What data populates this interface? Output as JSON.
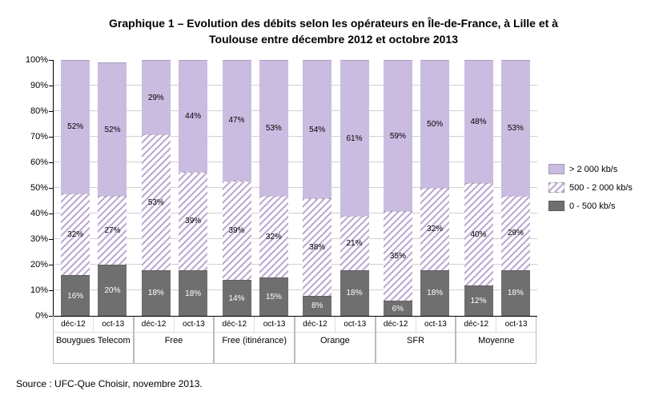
{
  "chart": {
    "type": "stacked-bar-percent",
    "title_line1": "Graphique 1 – Evolution des débits selon les opérateurs en Île-de-France, à Lille et à",
    "title_line2": "Toulouse entre décembre 2012 et octobre 2013",
    "y_axis": {
      "ticks": [
        0,
        10,
        20,
        30,
        40,
        50,
        60,
        70,
        80,
        90,
        100
      ],
      "suffix": "%",
      "min": 0,
      "max": 100
    },
    "legend": {
      "high": "> 2 000 kb/s",
      "mid": "500 - 2 000 kb/s",
      "low": "0 - 500 kb/s"
    },
    "colors": {
      "background": "#ffffff",
      "grid": "#d0d0d0",
      "axis": "#000000",
      "high_fill": "#cabce0",
      "mid_stripe": "#bda9d4",
      "mid_bg": "#ffffff",
      "low_fill": "#6f6f6f",
      "low_text": "#ffffff",
      "text": "#000000"
    },
    "typography": {
      "title_fontsize": 14,
      "title_weight": "bold",
      "tick_fontsize": 11,
      "bar_label_fontsize": 10,
      "source_fontsize": 12,
      "font_family": "Arial"
    },
    "periods": [
      "déc-12",
      "oct-13"
    ],
    "operators": [
      {
        "name": "Bouygues Telecom",
        "bars": [
          {
            "low": 16,
            "mid": 32,
            "high": 52
          },
          {
            "low": 20,
            "mid": 27,
            "high": 52
          }
        ]
      },
      {
        "name": "Free",
        "bars": [
          {
            "low": 18,
            "mid": 53,
            "high": 29
          },
          {
            "low": 18,
            "mid": 39,
            "high": 44
          }
        ]
      },
      {
        "name": "Free (itinérance)",
        "bars": [
          {
            "low": 14,
            "mid": 39,
            "high": 47
          },
          {
            "low": 15,
            "mid": 32,
            "high": 53
          }
        ]
      },
      {
        "name": "Orange",
        "bars": [
          {
            "low": 8,
            "mid": 38,
            "high": 54
          },
          {
            "low": 18,
            "mid": 21,
            "high": 61
          }
        ]
      },
      {
        "name": "SFR",
        "bars": [
          {
            "low": 6,
            "mid": 35,
            "high": 59
          },
          {
            "low": 18,
            "mid": 32,
            "high": 50
          }
        ]
      },
      {
        "name": "Moyenne",
        "bars": [
          {
            "low": 12,
            "mid": 40,
            "high": 48
          },
          {
            "low": 18,
            "mid": 29,
            "high": 53
          }
        ]
      }
    ],
    "source": "Source : UFC-Que Choisir, novembre 2013."
  }
}
